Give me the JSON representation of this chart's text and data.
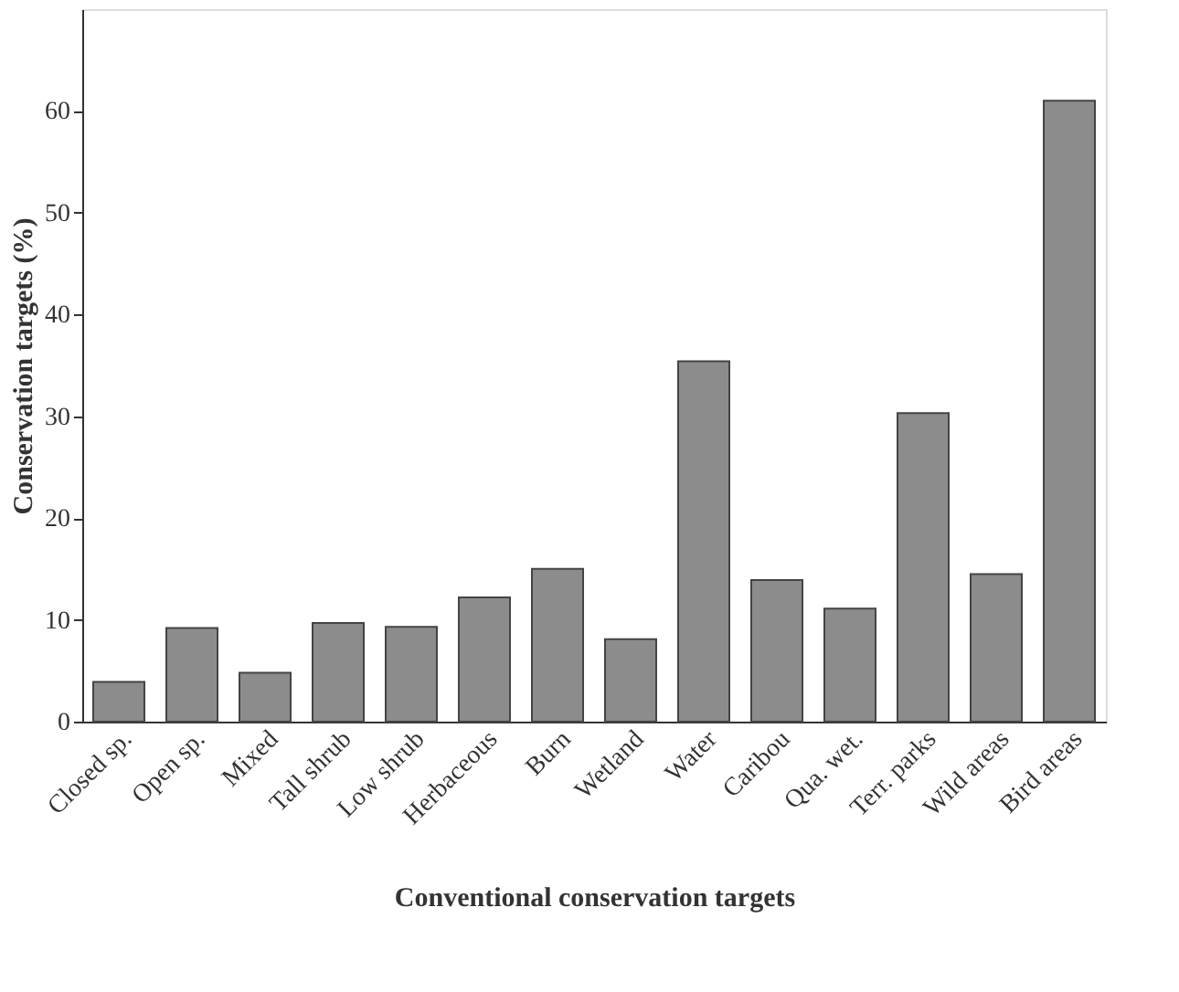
{
  "chart_data": {
    "type": "bar",
    "xlabel": "Conventional conservation targets",
    "ylabel": "Conservation targets (%)",
    "categories": [
      "Closed sp.",
      "Open sp.",
      "Mixed",
      "Tall shrub",
      "Low shrub",
      "Herbaceous",
      "Burn",
      "Wetland",
      "Water",
      "Caribou",
      "Qua. wet.",
      "Terr. parks",
      "Wild areas",
      "Bird areas"
    ],
    "values": [
      3.9,
      9.2,
      4.8,
      9.7,
      9.3,
      12.2,
      15.0,
      8.1,
      35.4,
      13.9,
      11.1,
      30.3,
      14.5,
      61.0
    ],
    "color": "#8c8c8c",
    "ylim": [
      0,
      70
    ],
    "yticks": [
      0,
      10,
      20,
      30,
      40,
      50,
      60
    ],
    "grid": false
  }
}
